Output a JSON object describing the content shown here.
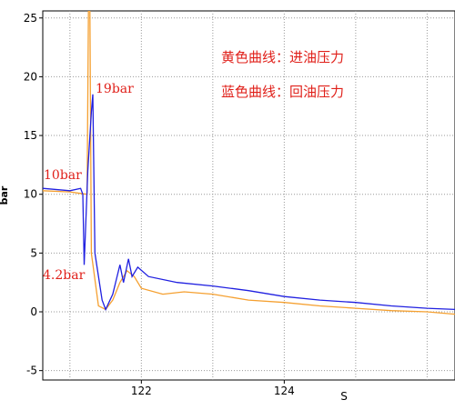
{
  "chart_data": {
    "type": "line",
    "x_label": "S",
    "y_label": "bar",
    "xlim": [
      120.62,
      126.39
    ],
    "ylim": [
      -5.8,
      25.6
    ],
    "xticks": [
      122,
      124
    ],
    "x_minor_grid": [
      121,
      123,
      125,
      126
    ],
    "yticks": [
      -5,
      0,
      5,
      10,
      15,
      20,
      25
    ],
    "grid": true,
    "annotations": [
      "19bar",
      "10bar",
      "4.2bar",
      "黄色曲线：进油压力",
      "蓝色曲线：回油压力"
    ],
    "series": [
      {
        "color": "#f5a030",
        "x": [
          120.62,
          121.0,
          121.24,
          121.26,
          121.28,
          121.3,
          121.4,
          121.5,
          121.6,
          121.7,
          121.8,
          121.9,
          122.0,
          122.3,
          122.6,
          123.0,
          123.5,
          124.0,
          124.5,
          125.0,
          125.5,
          126.0,
          126.39
        ],
        "values": [
          10.3,
          10.2,
          10,
          25.6,
          25.6,
          5,
          0.5,
          0.2,
          1,
          2.5,
          3.5,
          3,
          2,
          1.5,
          1.7,
          1.5,
          1,
          0.8,
          0.5,
          0.3,
          0.1,
          0,
          -0.2
        ]
      },
      {
        "color": "#2020e0",
        "x": [
          120.62,
          121.0,
          121.15,
          121.18,
          121.2,
          121.25,
          121.3,
          121.32,
          121.35,
          121.45,
          121.5,
          121.6,
          121.7,
          121.75,
          121.82,
          121.87,
          121.95,
          122.1,
          122.5,
          123.0,
          123.5,
          124.0,
          124.5,
          125.0,
          125.5,
          126.0,
          126.39
        ],
        "values": [
          10.5,
          10.3,
          10.5,
          10,
          4,
          12,
          17,
          18.5,
          5,
          1,
          0.2,
          1.5,
          4,
          2.5,
          4.5,
          3,
          3.8,
          3,
          2.5,
          2.2,
          1.8,
          1.3,
          1,
          0.8,
          0.5,
          0.3,
          0.2
        ]
      }
    ]
  }
}
